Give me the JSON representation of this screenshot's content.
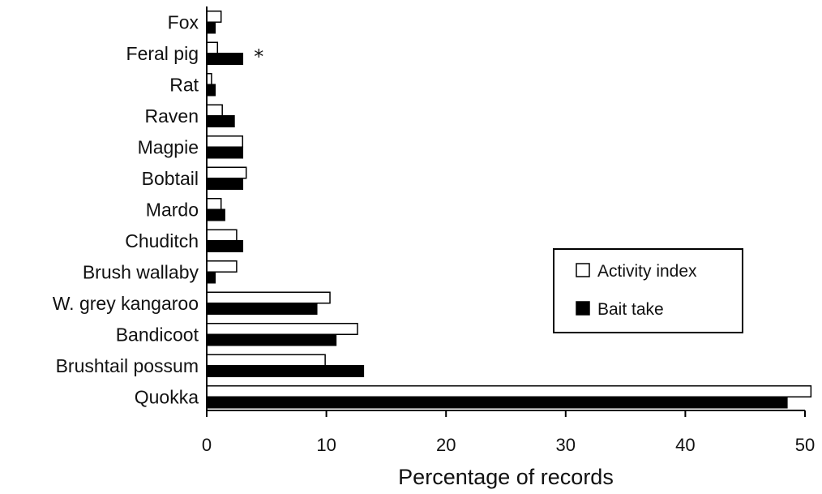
{
  "chart_data": {
    "type": "bar",
    "orientation": "horizontal",
    "categories": [
      "Fox",
      "Feral pig",
      "Rat",
      "Raven",
      "Magpie",
      "Bobtail",
      "Mardo",
      "Chuditch",
      "Brush wallaby",
      "W. grey kangaroo",
      "Bandicoot",
      "Brushtail possum",
      "Quokka"
    ],
    "series": [
      {
        "name": "Activity index",
        "color": "#ffffff",
        "values": [
          1.2,
          0.9,
          0.4,
          1.3,
          3.0,
          3.3,
          1.2,
          2.5,
          2.5,
          10.3,
          12.6,
          9.9,
          50.5
        ]
      },
      {
        "name": "Bait take",
        "color": "#000000",
        "values": [
          0.7,
          3.0,
          0.7,
          2.3,
          3.0,
          3.0,
          1.5,
          3.0,
          0.7,
          9.2,
          10.8,
          13.1,
          48.5
        ]
      }
    ],
    "xlabel": "Percentage of records",
    "ylabel": "",
    "xlim": [
      0,
      50
    ],
    "xticks": [
      0,
      10,
      20,
      30,
      40,
      50
    ],
    "grid": false,
    "legend_position": "center-right",
    "annotations": [
      {
        "category": "Feral pig",
        "text": "*"
      }
    ]
  }
}
